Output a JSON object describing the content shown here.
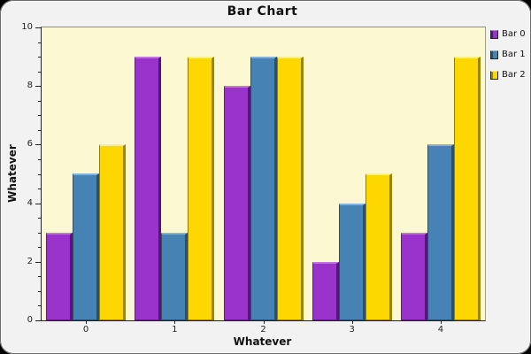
{
  "panel": {
    "background": "#F2F2F2",
    "plot_background": "#FCF8D2"
  },
  "chart_data": {
    "type": "bar",
    "title": "Bar Chart",
    "xlabel": "Whatever",
    "ylabel": "Whatever",
    "categories": [
      "0",
      "1",
      "2",
      "3",
      "4"
    ],
    "series": [
      {
        "name": "Bar 0",
        "values": [
          3,
          9,
          8,
          2,
          3
        ],
        "color": "#9933CC",
        "highlight": "#C36FE8",
        "shadow": "#561579"
      },
      {
        "name": "Bar 1",
        "values": [
          5,
          3,
          9,
          4,
          6
        ],
        "color": "#4682B4",
        "highlight": "#7FB2E0",
        "shadow": "#27516F"
      },
      {
        "name": "Bar 2",
        "values": [
          6,
          9,
          9,
          5,
          9
        ],
        "color": "#FFD700",
        "highlight": "#FFEE80",
        "shadow": "#9A8500"
      }
    ],
    "ylim": [
      0,
      10
    ],
    "major_tick_step": 2,
    "minor_tick_step": 0.5,
    "ytick_labels": [
      "0",
      "2",
      "4",
      "6",
      "8",
      "10"
    ],
    "legend_position": "top-right",
    "grid": false
  }
}
